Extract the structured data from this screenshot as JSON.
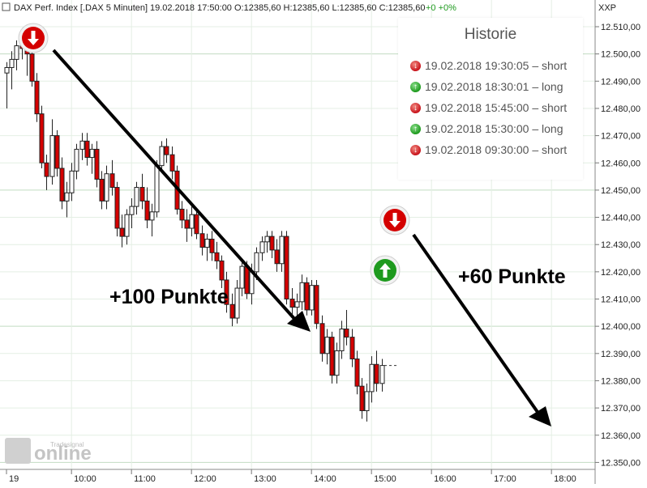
{
  "header": {
    "symbol": "DAX Perf. Index [.DAX  5 Minuten]",
    "datetime": "19.02.2018 17:50:00",
    "ohlc": "O:12385,60 H:12385,60 L:12385,60 C:12385,60",
    "change": "+0 +0%",
    "axis_unit": "XXP"
  },
  "history": {
    "title": "Historie",
    "entries": [
      {
        "text": "19.02.2018 19:30:05 – short",
        "type": "short"
      },
      {
        "text": "19.02.2018 18:30:01 – long",
        "type": "long"
      },
      {
        "text": "19.02.2018 15:45:00 – short",
        "type": "short"
      },
      {
        "text": "19.02.2018 15:30:00 – long",
        "type": "long"
      },
      {
        "text": "19.02.2018 09:30:00 – short",
        "type": "short"
      }
    ]
  },
  "annotations": {
    "move1": "+100 Punkte",
    "move2": "+60 Punkte"
  },
  "watermark": {
    "brand": "online",
    "sub": "Tradesignal"
  },
  "colors": {
    "bull": "#ffffff",
    "bear": "#d40000",
    "short": "#d40000",
    "long": "#1e9a1e",
    "grid": "#cfe3cf",
    "arrow": "#000000"
  },
  "chart_data": {
    "type": "candlestick",
    "x_start": "08:55",
    "interval_minutes": 5,
    "y_ticks": [
      "12.350,00",
      "12.360,00",
      "12.370,00",
      "12.380,00",
      "12.390,00",
      "12.400,00",
      "12.410,00",
      "12.420,00",
      "12.430,00",
      "12.440,00",
      "12.450,00",
      "12.460,00",
      "12.470,00",
      "12.480,00",
      "12.490,00",
      "12.500,00",
      "12.510,00"
    ],
    "x_ticks": [
      {
        "label": "19",
        "time": "08:55"
      },
      {
        "label": "10:00",
        "time": "10:00"
      },
      {
        "label": "11:00",
        "time": "11:00"
      },
      {
        "label": "12:00",
        "time": "12:00"
      },
      {
        "label": "13:00",
        "time": "13:00"
      },
      {
        "label": "14:00",
        "time": "14:00"
      },
      {
        "label": "15:00",
        "time": "15:00"
      },
      {
        "label": "16:00",
        "time": "16:00"
      },
      {
        "label": "17:00",
        "time": "17:00"
      },
      {
        "label": "18:00",
        "time": "18:00"
      }
    ],
    "ylim": [
      12350,
      12515
    ],
    "grid": true,
    "last_price": 12385.6,
    "candles": [
      [
        12493,
        12497,
        12480,
        12495
      ],
      [
        12495,
        12501,
        12487,
        12498
      ],
      [
        12498,
        12505,
        12494,
        12503
      ],
      [
        12503,
        12507,
        12498,
        12502
      ],
      [
        12502,
        12504,
        12492,
        12500
      ],
      [
        12500,
        12502,
        12488,
        12490
      ],
      [
        12490,
        12493,
        12475,
        12478
      ],
      [
        12478,
        12481,
        12458,
        12460
      ],
      [
        12460,
        12463,
        12450,
        12455
      ],
      [
        12455,
        12476,
        12452,
        12470
      ],
      [
        12470,
        12472,
        12455,
        12458
      ],
      [
        12458,
        12462,
        12443,
        12446
      ],
      [
        12446,
        12453,
        12440,
        12449
      ],
      [
        12449,
        12460,
        12446,
        12457
      ],
      [
        12457,
        12467,
        12454,
        12465
      ],
      [
        12465,
        12471,
        12461,
        12468
      ],
      [
        12468,
        12471,
        12459,
        12462
      ],
      [
        12462,
        12467,
        12456,
        12465
      ],
      [
        12465,
        12468,
        12451,
        12454
      ],
      [
        12454,
        12457,
        12443,
        12446
      ],
      [
        12446,
        12459,
        12443,
        12456
      ],
      [
        12456,
        12461,
        12448,
        12451
      ],
      [
        12451,
        12453,
        12433,
        12436
      ],
      [
        12436,
        12441,
        12429,
        12433
      ],
      [
        12433,
        12443,
        12430,
        12441
      ],
      [
        12441,
        12447,
        12436,
        12444
      ],
      [
        12444,
        12453,
        12441,
        12451
      ],
      [
        12451,
        12456,
        12443,
        12446
      ],
      [
        12446,
        12451,
        12436,
        12439
      ],
      [
        12439,
        12445,
        12433,
        12442
      ],
      [
        12442,
        12461,
        12440,
        12459
      ],
      [
        12459,
        12468,
        12457,
        12466
      ],
      [
        12466,
        12469,
        12460,
        12463
      ],
      [
        12463,
        12466,
        12454,
        12457
      ],
      [
        12457,
        12459,
        12441,
        12443
      ],
      [
        12443,
        12446,
        12436,
        12439
      ],
      [
        12439,
        12443,
        12431,
        12436
      ],
      [
        12436,
        12444,
        12433,
        12441
      ],
      [
        12441,
        12443,
        12432,
        12434
      ],
      [
        12434,
        12437,
        12426,
        12429
      ],
      [
        12429,
        12434,
        12424,
        12432
      ],
      [
        12432,
        12435,
        12424,
        12427
      ],
      [
        12427,
        12431,
        12421,
        12424
      ],
      [
        12424,
        12426,
        12414,
        12417
      ],
      [
        12417,
        12420,
        12405,
        12408
      ],
      [
        12408,
        12412,
        12400,
        12403
      ],
      [
        12403,
        12417,
        12401,
        12414
      ],
      [
        12414,
        12425,
        12411,
        12422
      ],
      [
        12422,
        12424,
        12410,
        12412
      ],
      [
        12412,
        12423,
        12408,
        12420
      ],
      [
        12420,
        12429,
        12417,
        12427
      ],
      [
        12427,
        12433,
        12424,
        12431
      ],
      [
        12431,
        12435,
        12427,
        12433
      ],
      [
        12433,
        12435,
        12425,
        12428
      ],
      [
        12428,
        12432,
        12420,
        12423
      ],
      [
        12423,
        12435,
        12420,
        12433
      ],
      [
        12433,
        12435,
        12408,
        12410
      ],
      [
        12410,
        12414,
        12404,
        12407
      ],
      [
        12407,
        12412,
        12402,
        12409
      ],
      [
        12409,
        12419,
        12406,
        12416
      ],
      [
        12416,
        12418,
        12404,
        12406
      ],
      [
        12406,
        12417,
        12404,
        12415
      ],
      [
        12415,
        12417,
        12399,
        12401
      ],
      [
        12401,
        12404,
        12387,
        12390
      ],
      [
        12390,
        12399,
        12386,
        12396
      ],
      [
        12396,
        12398,
        12379,
        12382
      ],
      [
        12382,
        12394,
        12379,
        12391
      ],
      [
        12391,
        12402,
        12388,
        12399
      ],
      [
        12399,
        12406,
        12393,
        12396
      ],
      [
        12396,
        12399,
        12385,
        12388
      ],
      [
        12388,
        12391,
        12375,
        12378
      ],
      [
        12378,
        12381,
        12366,
        12369
      ],
      [
        12369,
        12379,
        12365,
        12376
      ],
      [
        12376,
        12389,
        12372,
        12386
      ],
      [
        12386,
        12391,
        12376,
        12379
      ],
      [
        12379,
        12388,
        12376,
        12385.6
      ]
    ]
  }
}
